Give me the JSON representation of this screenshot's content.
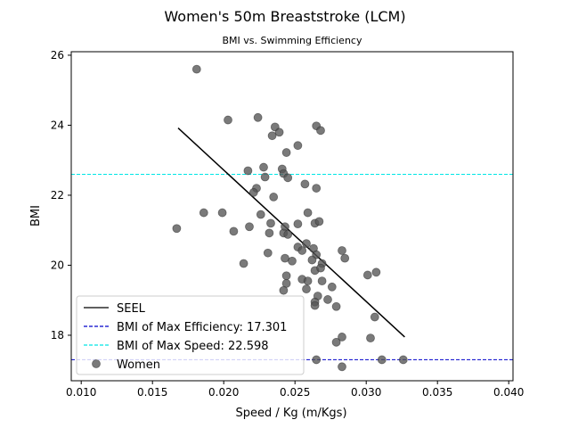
{
  "chart_data": {
    "type": "scatter",
    "title": "Women's 50m Breaststroke (LCM)",
    "subtitle": "BMI vs. Swimming Efficiency",
    "xlabel": "Speed / Kg (m/Kgs)",
    "ylabel": "BMI",
    "xlim": [
      0.0093,
      0.0403
    ],
    "ylim": [
      16.7,
      26.1
    ],
    "xticks": [
      0.01,
      0.015,
      0.02,
      0.025,
      0.03,
      0.035,
      0.04
    ],
    "xtick_labels": [
      "0.010",
      "0.015",
      "0.020",
      "0.025",
      "0.030",
      "0.035",
      "0.040"
    ],
    "yticks": [
      18,
      20,
      22,
      24,
      26
    ],
    "ytick_labels": [
      "18",
      "20",
      "22",
      "24",
      "26"
    ],
    "grid": false,
    "legend_placement": "lower-left",
    "legend": [
      {
        "label": "SEEL",
        "kind": "line",
        "color": "#000000",
        "dash": "solid"
      },
      {
        "label": "BMI of Max Efficiency: 17.301",
        "kind": "line",
        "color": "#0000cc",
        "dash": "dashed"
      },
      {
        "label": "BMI of Max Speed: 22.598",
        "kind": "line",
        "color": "#00e5e5",
        "dash": "dashed"
      },
      {
        "label": "Women",
        "kind": "marker",
        "color": "#555555"
      }
    ],
    "hlines": [
      {
        "name": "BMI of Max Efficiency",
        "y": 17.301,
        "color": "#0000cc"
      },
      {
        "name": "BMI of Max Speed",
        "y": 22.598,
        "color": "#00e5e5"
      }
    ],
    "fit_line": {
      "name": "SEEL",
      "x": [
        0.0168,
        0.0327
      ],
      "y": [
        23.92,
        17.95
      ],
      "color": "#000000"
    },
    "series": [
      {
        "name": "Women",
        "color": "#555555",
        "points": [
          [
            0.0181,
            25.6
          ],
          [
            0.0203,
            24.15
          ],
          [
            0.0224,
            24.22
          ],
          [
            0.0236,
            23.95
          ],
          [
            0.0265,
            23.98
          ],
          [
            0.0239,
            23.8
          ],
          [
            0.0268,
            23.85
          ],
          [
            0.0234,
            23.7
          ],
          [
            0.0252,
            23.42
          ],
          [
            0.0244,
            23.22
          ],
          [
            0.0217,
            22.7
          ],
          [
            0.0228,
            22.8
          ],
          [
            0.0241,
            22.75
          ],
          [
            0.0242,
            22.62
          ],
          [
            0.0229,
            22.52
          ],
          [
            0.0245,
            22.5
          ],
          [
            0.0257,
            22.32
          ],
          [
            0.0265,
            22.2
          ],
          [
            0.0223,
            22.2
          ],
          [
            0.0221,
            22.08
          ],
          [
            0.0235,
            21.95
          ],
          [
            0.0167,
            21.05
          ],
          [
            0.0186,
            21.5
          ],
          [
            0.0199,
            21.5
          ],
          [
            0.0226,
            21.45
          ],
          [
            0.0259,
            21.5
          ],
          [
            0.0233,
            21.2
          ],
          [
            0.0252,
            21.18
          ],
          [
            0.0264,
            21.2
          ],
          [
            0.0267,
            21.25
          ],
          [
            0.0218,
            21.1
          ],
          [
            0.0243,
            21.1
          ],
          [
            0.0207,
            20.97
          ],
          [
            0.0232,
            20.92
          ],
          [
            0.0242,
            20.92
          ],
          [
            0.0245,
            20.88
          ],
          [
            0.0252,
            20.52
          ],
          [
            0.0255,
            20.42
          ],
          [
            0.0258,
            20.62
          ],
          [
            0.0263,
            20.48
          ],
          [
            0.0283,
            20.42
          ],
          [
            0.0265,
            20.3
          ],
          [
            0.0285,
            20.2
          ],
          [
            0.0231,
            20.35
          ],
          [
            0.0243,
            20.2
          ],
          [
            0.0248,
            20.12
          ],
          [
            0.0262,
            20.15
          ],
          [
            0.0269,
            20.05
          ],
          [
            0.0214,
            20.05
          ],
          [
            0.0264,
            19.85
          ],
          [
            0.0268,
            19.92
          ],
          [
            0.0244,
            19.7
          ],
          [
            0.0301,
            19.72
          ],
          [
            0.0307,
            19.8
          ],
          [
            0.0255,
            19.6
          ],
          [
            0.0259,
            19.55
          ],
          [
            0.0269,
            19.55
          ],
          [
            0.0244,
            19.48
          ],
          [
            0.0258,
            19.32
          ],
          [
            0.0242,
            19.28
          ],
          [
            0.0276,
            19.38
          ],
          [
            0.0266,
            19.12
          ],
          [
            0.0273,
            19.02
          ],
          [
            0.0264,
            18.95
          ],
          [
            0.0264,
            18.85
          ],
          [
            0.0279,
            18.82
          ],
          [
            0.0306,
            18.52
          ],
          [
            0.0283,
            17.95
          ],
          [
            0.0303,
            17.92
          ],
          [
            0.0279,
            17.8
          ],
          [
            0.0265,
            17.3
          ],
          [
            0.0311,
            17.3
          ],
          [
            0.0326,
            17.3
          ],
          [
            0.0283,
            17.1
          ]
        ]
      }
    ]
  }
}
